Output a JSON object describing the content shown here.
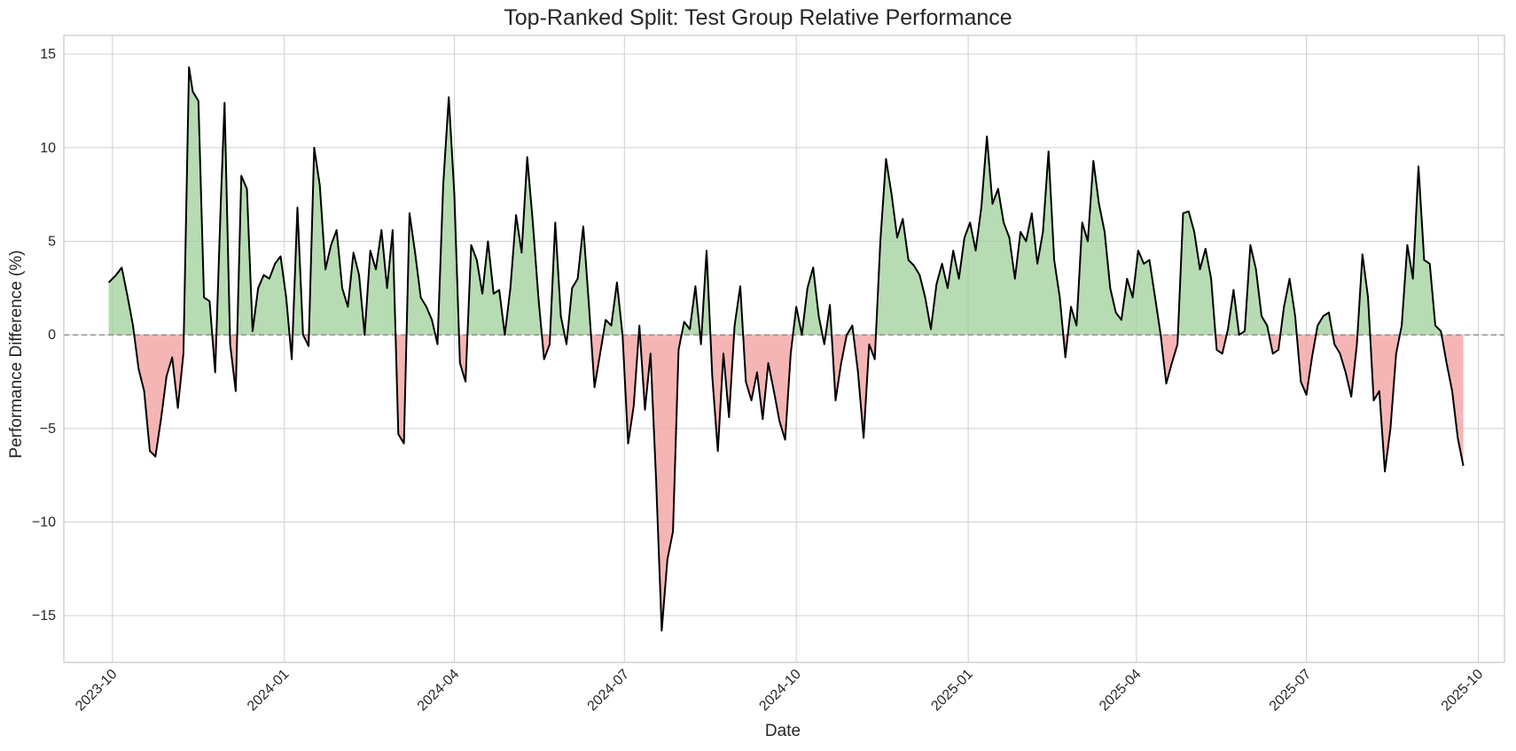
{
  "chart_data": {
    "type": "area",
    "title": "Top-Ranked Split: Test Group Relative Performance",
    "xlabel": "Date",
    "ylabel": "Performance Difference (%)",
    "x_range": [
      "2023-09-05",
      "2025-10-15"
    ],
    "ylim": [
      -17.5,
      16
    ],
    "yticks": [
      -15,
      -10,
      -5,
      0,
      5,
      10,
      15
    ],
    "ytick_labels": [
      "−15",
      "−10",
      "−5",
      "0",
      "5",
      "10",
      "15"
    ],
    "xticks": [
      "2023-10-01",
      "2024-01-01",
      "2024-04-01",
      "2024-07-01",
      "2024-10-01",
      "2025-01-01",
      "2025-04-01",
      "2025-07-01",
      "2025-10-01"
    ],
    "xtick_labels": [
      "2023-10",
      "2024-01",
      "2024-04",
      "2024-07",
      "2024-10",
      "2025-01",
      "2025-04",
      "2025-07",
      "2025-10"
    ],
    "grid": true,
    "reference_line": 0,
    "colors": {
      "positive_fill": "#9fcf98",
      "negative_fill": "#f4a2a2",
      "line": "#000000",
      "reference": "#808080"
    },
    "series": [
      {
        "x": [
          "2023-09-29",
          "2023-10-03",
          "2023-10-06",
          "2023-10-09",
          "2023-10-12",
          "2023-10-15",
          "2023-10-18",
          "2023-10-21",
          "2023-10-24",
          "2023-10-27",
          "2023-10-30",
          "2023-11-02",
          "2023-11-05",
          "2023-11-08",
          "2023-11-11",
          "2023-11-13",
          "2023-11-16",
          "2023-11-19",
          "2023-11-22",
          "2023-11-25",
          "2023-11-28",
          "2023-11-30",
          "2023-12-03",
          "2023-12-06",
          "2023-12-09",
          "2023-12-12",
          "2023-12-15",
          "2023-12-18",
          "2023-12-21",
          "2023-12-24",
          "2023-12-27",
          "2023-12-30",
          "2024-01-02",
          "2024-01-05",
          "2024-01-08",
          "2024-01-11",
          "2024-01-14",
          "2024-01-17",
          "2024-01-20",
          "2024-01-23",
          "2024-01-26",
          "2024-01-29",
          "2024-02-01",
          "2024-02-04",
          "2024-02-07",
          "2024-02-10",
          "2024-02-13",
          "2024-02-16",
          "2024-02-19",
          "2024-02-22",
          "2024-02-25",
          "2024-02-28",
          "2024-03-02",
          "2024-03-05",
          "2024-03-08",
          "2024-03-11",
          "2024-03-14",
          "2024-03-17",
          "2024-03-20",
          "2024-03-23",
          "2024-03-26",
          "2024-03-29",
          "2024-04-01",
          "2024-04-04",
          "2024-04-07",
          "2024-04-10",
          "2024-04-13",
          "2024-04-16",
          "2024-04-19",
          "2024-04-22",
          "2024-04-25",
          "2024-04-28",
          "2024-05-01",
          "2024-05-04",
          "2024-05-07",
          "2024-05-10",
          "2024-05-13",
          "2024-05-16",
          "2024-05-19",
          "2024-05-22",
          "2024-05-25",
          "2024-05-28",
          "2024-05-31",
          "2024-06-03",
          "2024-06-06",
          "2024-06-09",
          "2024-06-12",
          "2024-06-15",
          "2024-06-18",
          "2024-06-21",
          "2024-06-24",
          "2024-06-27",
          "2024-06-30",
          "2024-07-03",
          "2024-07-06",
          "2024-07-09",
          "2024-07-12",
          "2024-07-15",
          "2024-07-18",
          "2024-07-21",
          "2024-07-24",
          "2024-07-27",
          "2024-07-30",
          "2024-08-02",
          "2024-08-05",
          "2024-08-08",
          "2024-08-11",
          "2024-08-14",
          "2024-08-17",
          "2024-08-20",
          "2024-08-23",
          "2024-08-26",
          "2024-08-29",
          "2024-09-01",
          "2024-09-04",
          "2024-09-07",
          "2024-09-10",
          "2024-09-13",
          "2024-09-16",
          "2024-09-19",
          "2024-09-22",
          "2024-09-25",
          "2024-09-28",
          "2024-10-01",
          "2024-10-04",
          "2024-10-07",
          "2024-10-10",
          "2024-10-13",
          "2024-10-16",
          "2024-10-19",
          "2024-10-22",
          "2024-10-25",
          "2024-10-28",
          "2024-10-31",
          "2024-11-03",
          "2024-11-06",
          "2024-11-09",
          "2024-11-12",
          "2024-11-15",
          "2024-11-18",
          "2024-11-21",
          "2024-11-24",
          "2024-11-27",
          "2024-11-30",
          "2024-12-03",
          "2024-12-06",
          "2024-12-09",
          "2024-12-12",
          "2024-12-15",
          "2024-12-18",
          "2024-12-21",
          "2024-12-24",
          "2024-12-27",
          "2024-12-30",
          "2025-01-02",
          "2025-01-05",
          "2025-01-08",
          "2025-01-11",
          "2025-01-14",
          "2025-01-17",
          "2025-01-20",
          "2025-01-23",
          "2025-01-26",
          "2025-01-29",
          "2025-02-01",
          "2025-02-04",
          "2025-02-07",
          "2025-02-10",
          "2025-02-13",
          "2025-02-16",
          "2025-02-19",
          "2025-02-22",
          "2025-02-25",
          "2025-02-28",
          "2025-03-03",
          "2025-03-06",
          "2025-03-09",
          "2025-03-12",
          "2025-03-15",
          "2025-03-18",
          "2025-03-21",
          "2025-03-24",
          "2025-03-27",
          "2025-03-30",
          "2025-04-02",
          "2025-04-05",
          "2025-04-08",
          "2025-04-11",
          "2025-04-14",
          "2025-04-17",
          "2025-04-20",
          "2025-04-23",
          "2025-04-26",
          "2025-04-29",
          "2025-05-02",
          "2025-05-05",
          "2025-05-08",
          "2025-05-11",
          "2025-05-14",
          "2025-05-17",
          "2025-05-20",
          "2025-05-23",
          "2025-05-26",
          "2025-05-29",
          "2025-06-01",
          "2025-06-04",
          "2025-06-07",
          "2025-06-10",
          "2025-06-13",
          "2025-06-16",
          "2025-06-19",
          "2025-06-22",
          "2025-06-25",
          "2025-06-28",
          "2025-07-01",
          "2025-07-04",
          "2025-07-07",
          "2025-07-10",
          "2025-07-13",
          "2025-07-16",
          "2025-07-19",
          "2025-07-22",
          "2025-07-25",
          "2025-07-28",
          "2025-07-31",
          "2025-08-03",
          "2025-08-06",
          "2025-08-09",
          "2025-08-12",
          "2025-08-15",
          "2025-08-18",
          "2025-08-21",
          "2025-08-24",
          "2025-08-27",
          "2025-08-30",
          "2025-09-02",
          "2025-09-05",
          "2025-09-08",
          "2025-09-11",
          "2025-09-14",
          "2025-09-17",
          "2025-09-20",
          "2025-09-23"
        ],
        "values": [
          2.8,
          3.2,
          3.6,
          2.1,
          0.5,
          -1.8,
          -3.0,
          -6.2,
          -6.5,
          -4.5,
          -2.2,
          -1.2,
          -3.9,
          -1.0,
          14.3,
          13.0,
          12.5,
          2.0,
          1.8,
          -2.0,
          7.0,
          12.4,
          -0.5,
          -3.0,
          8.5,
          7.8,
          0.2,
          2.5,
          3.2,
          3.0,
          3.8,
          4.2,
          2.0,
          -1.3,
          6.8,
          0.0,
          -0.6,
          10.0,
          8.0,
          3.5,
          4.8,
          5.6,
          2.5,
          1.5,
          4.4,
          3.2,
          0.0,
          4.5,
          3.5,
          5.6,
          2.5,
          5.6,
          -5.3,
          -5.8,
          6.5,
          4.4,
          2.0,
          1.5,
          0.8,
          -0.5,
          8.0,
          12.7,
          7.5,
          -1.5,
          -2.5,
          4.8,
          4.0,
          2.2,
          5.0,
          2.2,
          2.4,
          0.0,
          2.5,
          6.4,
          4.4,
          9.5,
          6.0,
          2.0,
          -1.3,
          -0.5,
          6.0,
          1.0,
          -0.5,
          2.5,
          3.0,
          5.8,
          1.6,
          -2.8,
          -1.0,
          0.8,
          0.5,
          2.8,
          0.0,
          -5.8,
          -3.8,
          0.5,
          -4.0,
          -1.0,
          -7.8,
          -15.8,
          -12.0,
          -10.5,
          -0.8,
          0.7,
          0.3,
          2.6,
          -0.5,
          4.5,
          -2.2,
          -6.2,
          -1.0,
          -4.4,
          0.5,
          2.6,
          -2.5,
          -3.5,
          -2.0,
          -4.5,
          -1.5,
          -3.0,
          -4.6,
          -5.6,
          -1.0,
          1.5,
          0.0,
          2.5,
          3.6,
          1.0,
          -0.5,
          1.6,
          -3.5,
          -1.5,
          0.0,
          0.5,
          -2.0,
          -5.5,
          -0.5,
          -1.3,
          5.0,
          9.4,
          7.5,
          5.2,
          6.2,
          4.0,
          3.7,
          3.2,
          2.0,
          0.3,
          2.7,
          3.8,
          2.5,
          4.5,
          3.0,
          5.2,
          6.0,
          4.5,
          6.8,
          10.6,
          7.0,
          7.8,
          6.0,
          5.2,
          3.0,
          5.5,
          5.0,
          6.5,
          3.8,
          5.5,
          9.8,
          4.0,
          2.0,
          -1.2,
          1.5,
          0.5,
          6.0,
          5.0,
          9.3,
          7.0,
          5.5,
          2.5,
          1.2,
          0.8,
          3.0,
          2.0,
          4.5,
          3.8,
          4.0,
          2.0,
          0.0,
          -2.6,
          -1.5,
          -0.5,
          6.5,
          6.6,
          5.5,
          3.5,
          4.6,
          3.0,
          -0.8,
          -1.0,
          0.3,
          2.4,
          0.0,
          0.2,
          4.8,
          3.5,
          1.0,
          0.5,
          -1.0,
          -0.8,
          1.5,
          3.0,
          1.0,
          -2.5,
          -3.2,
          -1.2,
          0.5,
          1.0,
          1.2,
          -0.5,
          -1.0,
          -2.0,
          -3.3,
          -0.5,
          4.3,
          2.0,
          -3.5,
          -3.0,
          -7.3,
          -5.0,
          -1.0,
          0.5,
          4.8,
          3.0,
          9.0,
          4.0,
          3.8,
          0.5,
          0.2,
          -1.5,
          -3.0,
          -5.5,
          -7.0
        ]
      }
    ]
  }
}
